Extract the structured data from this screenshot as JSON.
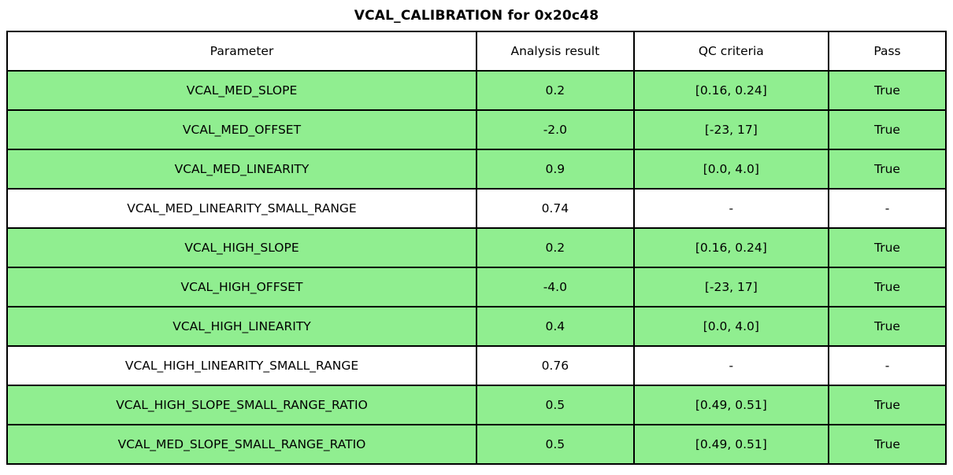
{
  "title": "VCAL_CALIBRATION for 0x20c48",
  "colors": {
    "pass_row_green": "#90EE90",
    "plain_row_white": "#FFFFFF",
    "border": "#000000",
    "text": "#000000"
  },
  "chart_data": {
    "type": "table",
    "title": "VCAL_CALIBRATION for 0x20c48",
    "columns": [
      "Parameter",
      "Analysis result",
      "QC criteria",
      "Pass"
    ],
    "rows": [
      [
        "VCAL_MED_SLOPE",
        "0.2",
        "[0.16, 0.24]",
        "True"
      ],
      [
        "VCAL_MED_OFFSET",
        "-2.0",
        "[-23, 17]",
        "True"
      ],
      [
        "VCAL_MED_LINEARITY",
        "0.9",
        "[0.0, 4.0]",
        "True"
      ],
      [
        "VCAL_MED_LINEARITY_SMALL_RANGE",
        "0.74",
        "-",
        "-"
      ],
      [
        "VCAL_HIGH_SLOPE",
        "0.2",
        "[0.16, 0.24]",
        "True"
      ],
      [
        "VCAL_HIGH_OFFSET",
        "-4.0",
        "[-23, 17]",
        "True"
      ],
      [
        "VCAL_HIGH_LINEARITY",
        "0.4",
        "[0.0, 4.0]",
        "True"
      ],
      [
        "VCAL_HIGH_LINEARITY_SMALL_RANGE",
        "0.76",
        "-",
        "-"
      ],
      [
        "VCAL_HIGH_SLOPE_SMALL_RANGE_RATIO",
        "0.5",
        "[0.49, 0.51]",
        "True"
      ],
      [
        "VCAL_MED_SLOPE_SMALL_RANGE_RATIO",
        "0.5",
        "[0.49, 0.51]",
        "True"
      ]
    ],
    "row_highlight": [
      true,
      true,
      true,
      false,
      true,
      true,
      true,
      false,
      true,
      true
    ],
    "layout_hints": {
      "title_position": "top-center",
      "header_row_background": "#FFFFFF",
      "highlight_means": "QC passed"
    }
  }
}
